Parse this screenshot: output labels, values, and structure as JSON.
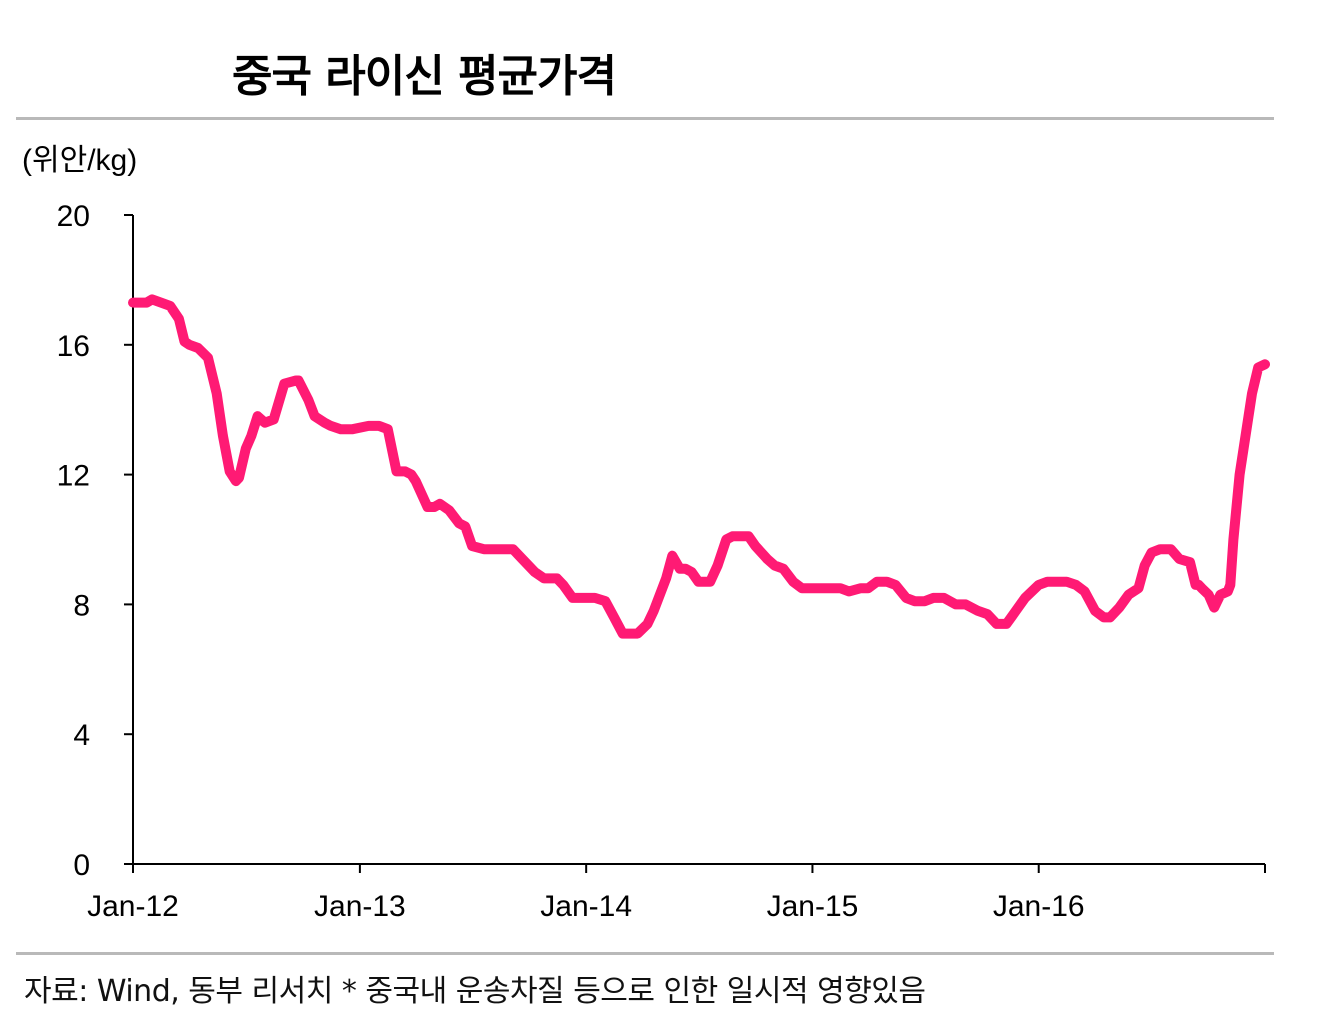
{
  "title": "중국 라이신 평균가격",
  "source": "자료: Wind, 동부 리서치 * 중국내 운송차질 등으로 인한 일시적 영향있음",
  "colors": {
    "line": "#FF1A74",
    "axis": "#000000",
    "rule": "#B9B9B9"
  },
  "chart_data": {
    "type": "line",
    "ylabel": "(위안/kg)",
    "ylim": [
      0,
      20
    ],
    "yticks": [
      "0",
      "4",
      "8",
      "12",
      "16",
      "20"
    ],
    "xlim": [
      "2012-01-01",
      "2016-12-31"
    ],
    "xticks": [
      {
        "label": "Jan-12",
        "date": "2012-01-01"
      },
      {
        "label": "Jan-13",
        "date": "2013-01-01"
      },
      {
        "label": "Jan-14",
        "date": "2014-01-01"
      },
      {
        "label": "Jan-15",
        "date": "2015-01-01"
      },
      {
        "label": "Jan-16",
        "date": "2016-01-01"
      }
    ],
    "grid": false,
    "legend": "none",
    "series": [
      {
        "x": [
          "2012-01-01",
          "2012-01-23",
          "2012-02-01",
          "2012-02-15",
          "2012-03-01",
          "2012-03-15",
          "2012-03-24",
          "2012-04-01",
          "2012-04-15",
          "2012-05-01",
          "2012-05-15",
          "2012-05-25",
          "2012-06-05",
          "2012-06-15",
          "2012-06-20",
          "2012-07-01",
          "2012-07-10",
          "2012-07-20",
          "2012-08-01",
          "2012-08-15",
          "2012-09-01",
          "2012-09-20",
          "2012-09-24",
          "2012-10-10",
          "2012-10-20",
          "2012-11-05",
          "2012-11-15",
          "2012-12-01",
          "2012-12-20",
          "2013-01-15",
          "2013-02-01",
          "2013-02-15",
          "2013-03-01",
          "2013-03-15",
          "2013-03-25",
          "2013-04-01",
          "2013-04-20",
          "2013-05-01",
          "2013-05-10",
          "2013-05-25",
          "2013-06-10",
          "2013-06-20",
          "2013-07-01",
          "2013-07-20",
          "2013-08-15",
          "2013-09-05",
          "2013-09-20",
          "2013-10-10",
          "2013-10-25",
          "2013-11-15",
          "2013-11-25",
          "2013-12-10",
          "2013-12-25",
          "2014-01-15",
          "2014-02-01",
          "2014-02-15",
          "2014-03-01",
          "2014-03-15",
          "2014-03-25",
          "2014-04-10",
          "2014-04-20",
          "2014-05-10",
          "2014-05-20",
          "2014-06-01",
          "2014-06-10",
          "2014-06-20",
          "2014-07-01",
          "2014-07-20",
          "2014-08-01",
          "2014-08-15",
          "2014-08-25",
          "2014-09-05",
          "2014-09-20",
          "2014-10-01",
          "2014-10-20",
          "2014-11-01",
          "2014-11-15",
          "2014-12-01",
          "2014-12-15",
          "2015-01-01",
          "2015-01-15",
          "2015-02-15",
          "2015-03-01",
          "2015-03-20",
          "2015-04-01",
          "2015-04-15",
          "2015-05-01",
          "2015-05-15",
          "2015-06-01",
          "2015-06-15",
          "2015-07-01",
          "2015-07-15",
          "2015-08-01",
          "2015-08-20",
          "2015-09-05",
          "2015-09-25",
          "2015-10-10",
          "2015-10-25",
          "2015-11-10",
          "2015-11-25",
          "2015-12-10",
          "2016-01-01",
          "2016-01-15",
          "2016-02-01",
          "2016-02-15",
          "2016-03-01",
          "2016-03-15",
          "2016-04-01",
          "2016-04-15",
          "2016-04-25",
          "2016-05-10",
          "2016-05-25",
          "2016-06-10",
          "2016-06-20",
          "2016-07-01",
          "2016-07-15",
          "2016-07-20",
          "2016-08-01",
          "2016-08-15",
          "2016-09-01",
          "2016-09-10",
          "2016-09-15",
          "2016-09-20",
          "2016-10-01",
          "2016-10-10",
          "2016-10-20",
          "2016-11-01",
          "2016-11-05",
          "2016-11-10",
          "2016-11-20",
          "2016-12-10",
          "2016-12-20",
          "2016-12-31"
        ],
        "values": [
          17.3,
          17.3,
          17.4,
          17.3,
          17.2,
          16.8,
          16.1,
          16.0,
          15.9,
          15.6,
          14.5,
          13.2,
          12.1,
          11.8,
          11.9,
          12.8,
          13.2,
          13.8,
          13.6,
          13.7,
          14.8,
          14.9,
          14.9,
          14.3,
          13.8,
          13.6,
          13.5,
          13.4,
          13.4,
          13.5,
          13.5,
          13.4,
          12.1,
          12.1,
          12.0,
          11.8,
          11.0,
          11.0,
          11.1,
          10.9,
          10.5,
          10.4,
          9.8,
          9.7,
          9.7,
          9.7,
          9.4,
          9.0,
          8.8,
          8.8,
          8.6,
          8.2,
          8.2,
          8.2,
          8.1,
          7.6,
          7.1,
          7.1,
          7.1,
          7.4,
          7.8,
          8.8,
          9.5,
          9.1,
          9.1,
          9.0,
          8.7,
          8.7,
          9.2,
          10.0,
          10.1,
          10.1,
          10.1,
          9.8,
          9.4,
          9.2,
          9.1,
          8.7,
          8.5,
          8.5,
          8.5,
          8.5,
          8.4,
          8.5,
          8.5,
          8.7,
          8.7,
          8.6,
          8.2,
          8.1,
          8.1,
          8.2,
          8.2,
          8.0,
          8.0,
          7.8,
          7.7,
          7.4,
          7.4,
          7.8,
          8.2,
          8.6,
          8.7,
          8.7,
          8.7,
          8.6,
          8.4,
          7.8,
          7.6,
          7.6,
          7.9,
          8.3,
          8.5,
          9.2,
          9.6,
          9.7,
          9.7,
          9.7,
          9.4,
          9.3,
          8.6,
          8.6,
          8.5,
          8.3,
          7.9,
          8.3,
          8.4,
          8.6,
          10.0,
          12.0,
          14.5,
          15.3,
          15.4
        ]
      }
    ]
  }
}
